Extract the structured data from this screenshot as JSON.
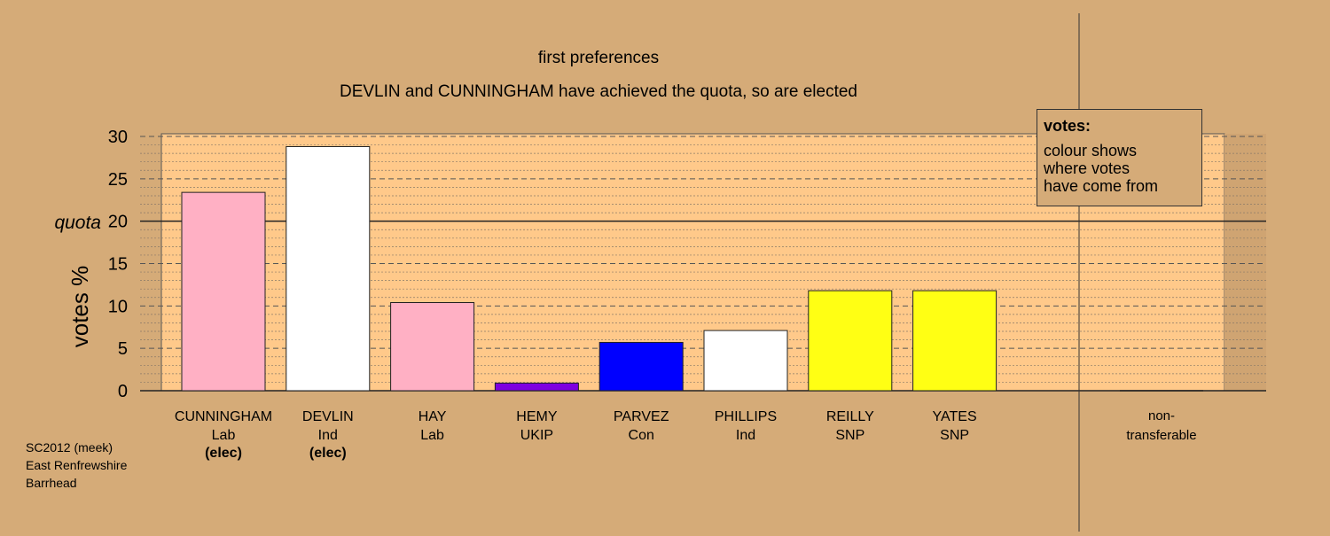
{
  "chart_data": {
    "type": "bar",
    "title": "first preferences",
    "subtitle": "DEVLIN and CUNNINGHAM have achieved the quota, so are elected",
    "ylabel": "votes %",
    "ylim": [
      0,
      30
    ],
    "yticks": [
      0,
      5,
      10,
      15,
      20,
      25,
      30
    ],
    "quota": 20,
    "quota_label": "quota",
    "categories": [
      {
        "name": "CUNNINGHAM",
        "party": "Lab",
        "status": "(elec)",
        "value": 23.4,
        "color": "#FFB0C4"
      },
      {
        "name": "DEVLIN",
        "party": "Ind",
        "status": "(elec)",
        "value": 28.8,
        "color": "#FFFFFF"
      },
      {
        "name": "HAY",
        "party": "Lab",
        "status": "",
        "value": 10.4,
        "color": "#FFB0C4"
      },
      {
        "name": "HEMY",
        "party": "UKIP",
        "status": "",
        "value": 0.9,
        "color": "#7E00E0"
      },
      {
        "name": "PARVEZ",
        "party": "Con",
        "status": "",
        "value": 5.7,
        "color": "#0000FF"
      },
      {
        "name": "PHILLIPS",
        "party": "Ind",
        "status": "",
        "value": 7.1,
        "color": "#FFFFFF"
      },
      {
        "name": "REILLY",
        "party": "SNP",
        "status": "",
        "value": 11.8,
        "color": "#FFFF14"
      },
      {
        "name": "YATES",
        "party": "SNP",
        "status": "",
        "value": 11.8,
        "color": "#FFFF14"
      }
    ],
    "non_transferable": {
      "label_line1": "non-",
      "label_line2": "transferable",
      "value": 0
    },
    "grid": true,
    "legend_position": "top-right",
    "colors": {
      "background": "#D5AB78",
      "plot_background": "#FFC98A"
    }
  },
  "legend": {
    "title": "votes:",
    "lines": [
      "colour shows",
      "where votes",
      "have come from"
    ]
  },
  "source": {
    "line1": "SC2012 (meek)",
    "line2": "East Renfrewshire",
    "line3": "Barrhead"
  }
}
